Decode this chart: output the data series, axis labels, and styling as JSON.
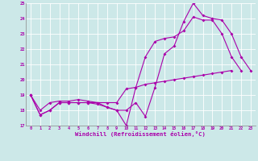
{
  "xlabel": "Windchill (Refroidissement éolien,°C)",
  "xlim": [
    -0.5,
    23.5
  ],
  "ylim": [
    17,
    25
  ],
  "xticks": [
    0,
    1,
    2,
    3,
    4,
    5,
    6,
    7,
    8,
    9,
    10,
    11,
    12,
    13,
    14,
    15,
    16,
    17,
    18,
    19,
    20,
    21,
    22,
    23
  ],
  "yticks": [
    17,
    18,
    19,
    20,
    21,
    22,
    23,
    24,
    25
  ],
  "background_color": "#cce8e8",
  "line_color": "#aa00aa",
  "line1_x": [
    0,
    1,
    2,
    3,
    4,
    5,
    6,
    7,
    8,
    9,
    10,
    11,
    12,
    13,
    14,
    15,
    16,
    17,
    18,
    19,
    20,
    21,
    22,
    23
  ],
  "line1_y": [
    19.0,
    17.7,
    18.0,
    18.5,
    18.5,
    18.5,
    18.5,
    18.5,
    18.2,
    18.0,
    18.0,
    18.5,
    17.6,
    19.5,
    21.7,
    22.2,
    23.8,
    25.0,
    24.2,
    24.0,
    23.9,
    23.0,
    21.5,
    20.6
  ],
  "line2_x": [
    0,
    1,
    2,
    3,
    4,
    5,
    6,
    7,
    8,
    9,
    10,
    11,
    12,
    13,
    14,
    15,
    16,
    17,
    18,
    19,
    20,
    21,
    22
  ],
  "line2_y": [
    19.0,
    17.7,
    18.0,
    18.5,
    18.5,
    18.5,
    18.5,
    18.4,
    18.2,
    18.0,
    17.0,
    19.5,
    21.5,
    22.5,
    22.7,
    22.8,
    23.2,
    24.1,
    23.9,
    23.9,
    23.0,
    21.5,
    20.6
  ],
  "line3_x": [
    0,
    1,
    2,
    3,
    4,
    5,
    6,
    7,
    8,
    9,
    10,
    11,
    12,
    13,
    14,
    15,
    16,
    17,
    18,
    19,
    20,
    21
  ],
  "line3_y": [
    19.0,
    18.0,
    18.5,
    18.6,
    18.6,
    18.7,
    18.6,
    18.5,
    18.5,
    18.5,
    19.4,
    19.5,
    19.7,
    19.8,
    19.9,
    20.0,
    20.1,
    20.2,
    20.3,
    20.4,
    20.5,
    20.6
  ]
}
